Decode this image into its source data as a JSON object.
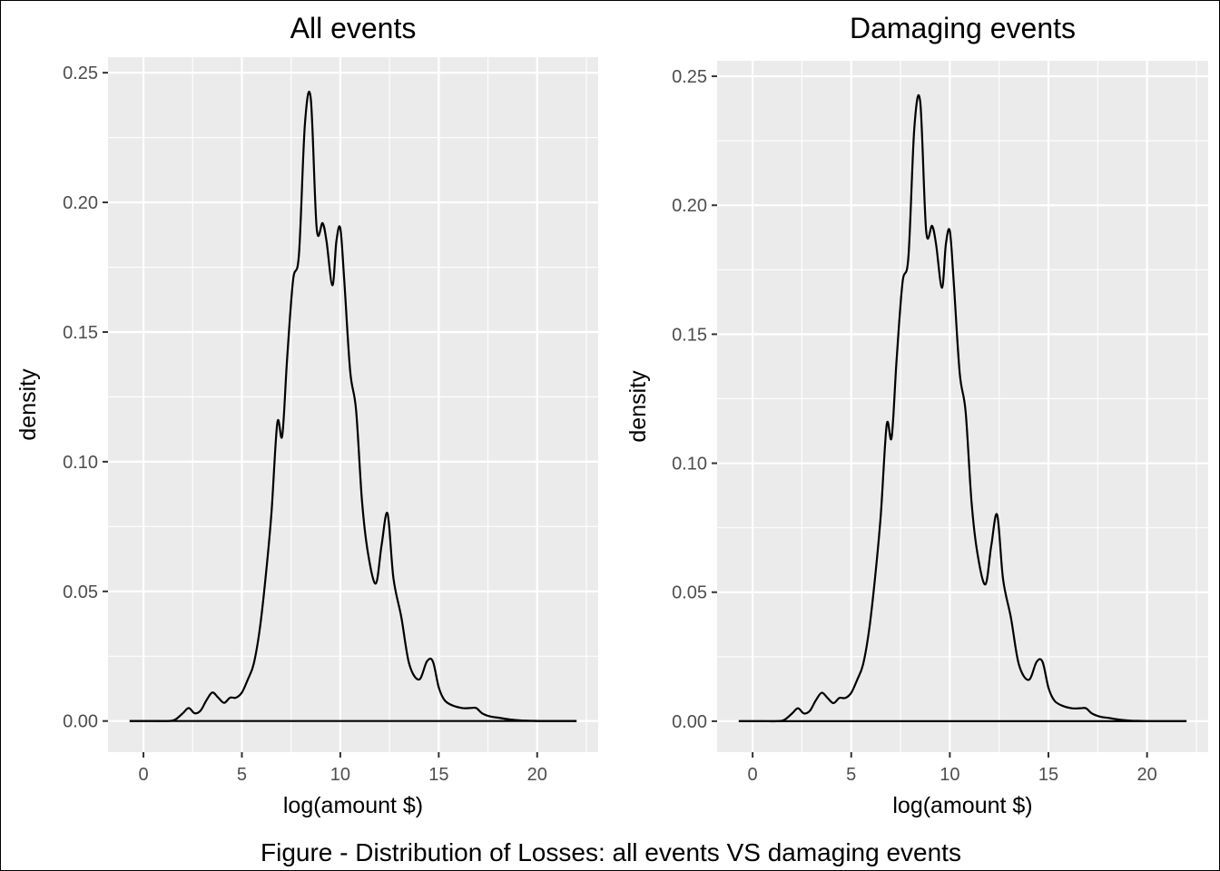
{
  "caption": "Figure - Distribution of Losses: all events VS damaging events",
  "chart_data": [
    {
      "type": "line",
      "title": "All events",
      "xlabel": "log(amount $)",
      "ylabel": "density",
      "xlim": [
        -1.8,
        23.1
      ],
      "ylim": [
        -0.012,
        0.256
      ],
      "x_ticks": [
        0,
        5,
        10,
        15,
        20
      ],
      "y_ticks": [
        0.0,
        0.05,
        0.1,
        0.15,
        0.2,
        0.25
      ],
      "x_tick_labels": [
        "0",
        "5",
        "10",
        "15",
        "20"
      ],
      "y_tick_labels": [
        "0.00",
        "0.05",
        "0.10",
        "0.15",
        "0.20",
        "0.25"
      ],
      "grid": true,
      "colors": {
        "panel": "#ebebeb",
        "grid": "#ffffff",
        "line": "#000000"
      },
      "series": [
        {
          "x": [
            -0.7,
            0.5,
            1.2,
            1.6,
            2.0,
            2.3,
            2.6,
            2.9,
            3.2,
            3.5,
            3.8,
            4.1,
            4.4,
            4.7,
            5.0,
            5.3,
            5.6,
            5.9,
            6.2,
            6.5,
            6.8,
            7.05,
            7.3,
            7.6,
            7.9,
            8.2,
            8.5,
            8.8,
            9.1,
            9.3,
            9.6,
            9.8,
            10.0,
            10.2,
            10.5,
            10.8,
            11.1,
            11.4,
            11.8,
            12.1,
            12.4,
            12.7,
            13.1,
            13.5,
            14.0,
            14.4,
            14.7,
            15.0,
            15.3,
            15.7,
            16.2,
            16.6,
            16.9,
            17.2,
            17.6,
            18.1,
            18.6,
            19.2,
            19.7,
            20.2,
            21.0,
            22.0
          ],
          "y": [
            0.0,
            0.0,
            0.0,
            0.0005,
            0.003,
            0.005,
            0.003,
            0.004,
            0.008,
            0.011,
            0.009,
            0.007,
            0.009,
            0.009,
            0.011,
            0.016,
            0.022,
            0.035,
            0.055,
            0.08,
            0.115,
            0.11,
            0.14,
            0.17,
            0.18,
            0.23,
            0.24,
            0.19,
            0.192,
            0.185,
            0.168,
            0.185,
            0.19,
            0.17,
            0.135,
            0.12,
            0.085,
            0.065,
            0.053,
            0.068,
            0.08,
            0.055,
            0.04,
            0.022,
            0.016,
            0.023,
            0.023,
            0.013,
            0.008,
            0.006,
            0.005,
            0.005,
            0.005,
            0.003,
            0.0018,
            0.0012,
            0.0006,
            0.0002,
            0.0001,
            0.0,
            0.0,
            0.0
          ]
        }
      ]
    },
    {
      "type": "line",
      "title": "Damaging events",
      "xlabel": "log(amount $)",
      "ylabel": "density",
      "xlim": [
        -1.8,
        23.1
      ],
      "ylim": [
        -0.012,
        0.256
      ],
      "x_ticks": [
        0,
        5,
        10,
        15,
        20
      ],
      "y_ticks": [
        0.0,
        0.05,
        0.1,
        0.15,
        0.2,
        0.25
      ],
      "x_tick_labels": [
        "0",
        "5",
        "10",
        "15",
        "20"
      ],
      "y_tick_labels": [
        "0.00",
        "0.05",
        "0.10",
        "0.15",
        "0.20",
        "0.25"
      ],
      "grid": true,
      "colors": {
        "panel": "#ebebeb",
        "grid": "#ffffff",
        "line": "#000000"
      },
      "series": [
        {
          "x": [
            -0.7,
            0.5,
            1.2,
            1.6,
            2.0,
            2.3,
            2.6,
            2.9,
            3.2,
            3.5,
            3.8,
            4.1,
            4.4,
            4.7,
            5.0,
            5.3,
            5.6,
            5.9,
            6.2,
            6.5,
            6.8,
            7.05,
            7.3,
            7.6,
            7.9,
            8.2,
            8.5,
            8.8,
            9.1,
            9.3,
            9.6,
            9.8,
            10.0,
            10.2,
            10.5,
            10.8,
            11.1,
            11.4,
            11.8,
            12.1,
            12.4,
            12.7,
            13.1,
            13.5,
            14.0,
            14.4,
            14.7,
            15.0,
            15.3,
            15.7,
            16.2,
            16.6,
            16.9,
            17.2,
            17.6,
            18.1,
            18.6,
            19.2,
            19.7,
            20.2,
            21.0,
            22.0
          ],
          "y": [
            0.0,
            0.0,
            0.0,
            0.0005,
            0.003,
            0.005,
            0.003,
            0.004,
            0.008,
            0.011,
            0.009,
            0.007,
            0.009,
            0.009,
            0.011,
            0.016,
            0.022,
            0.035,
            0.055,
            0.08,
            0.115,
            0.11,
            0.14,
            0.17,
            0.18,
            0.23,
            0.24,
            0.19,
            0.192,
            0.185,
            0.168,
            0.185,
            0.19,
            0.17,
            0.135,
            0.12,
            0.085,
            0.065,
            0.053,
            0.068,
            0.08,
            0.055,
            0.04,
            0.022,
            0.016,
            0.023,
            0.023,
            0.013,
            0.008,
            0.006,
            0.005,
            0.005,
            0.005,
            0.003,
            0.0018,
            0.0012,
            0.0006,
            0.0002,
            0.0001,
            0.0,
            0.0,
            0.0
          ]
        }
      ]
    }
  ]
}
